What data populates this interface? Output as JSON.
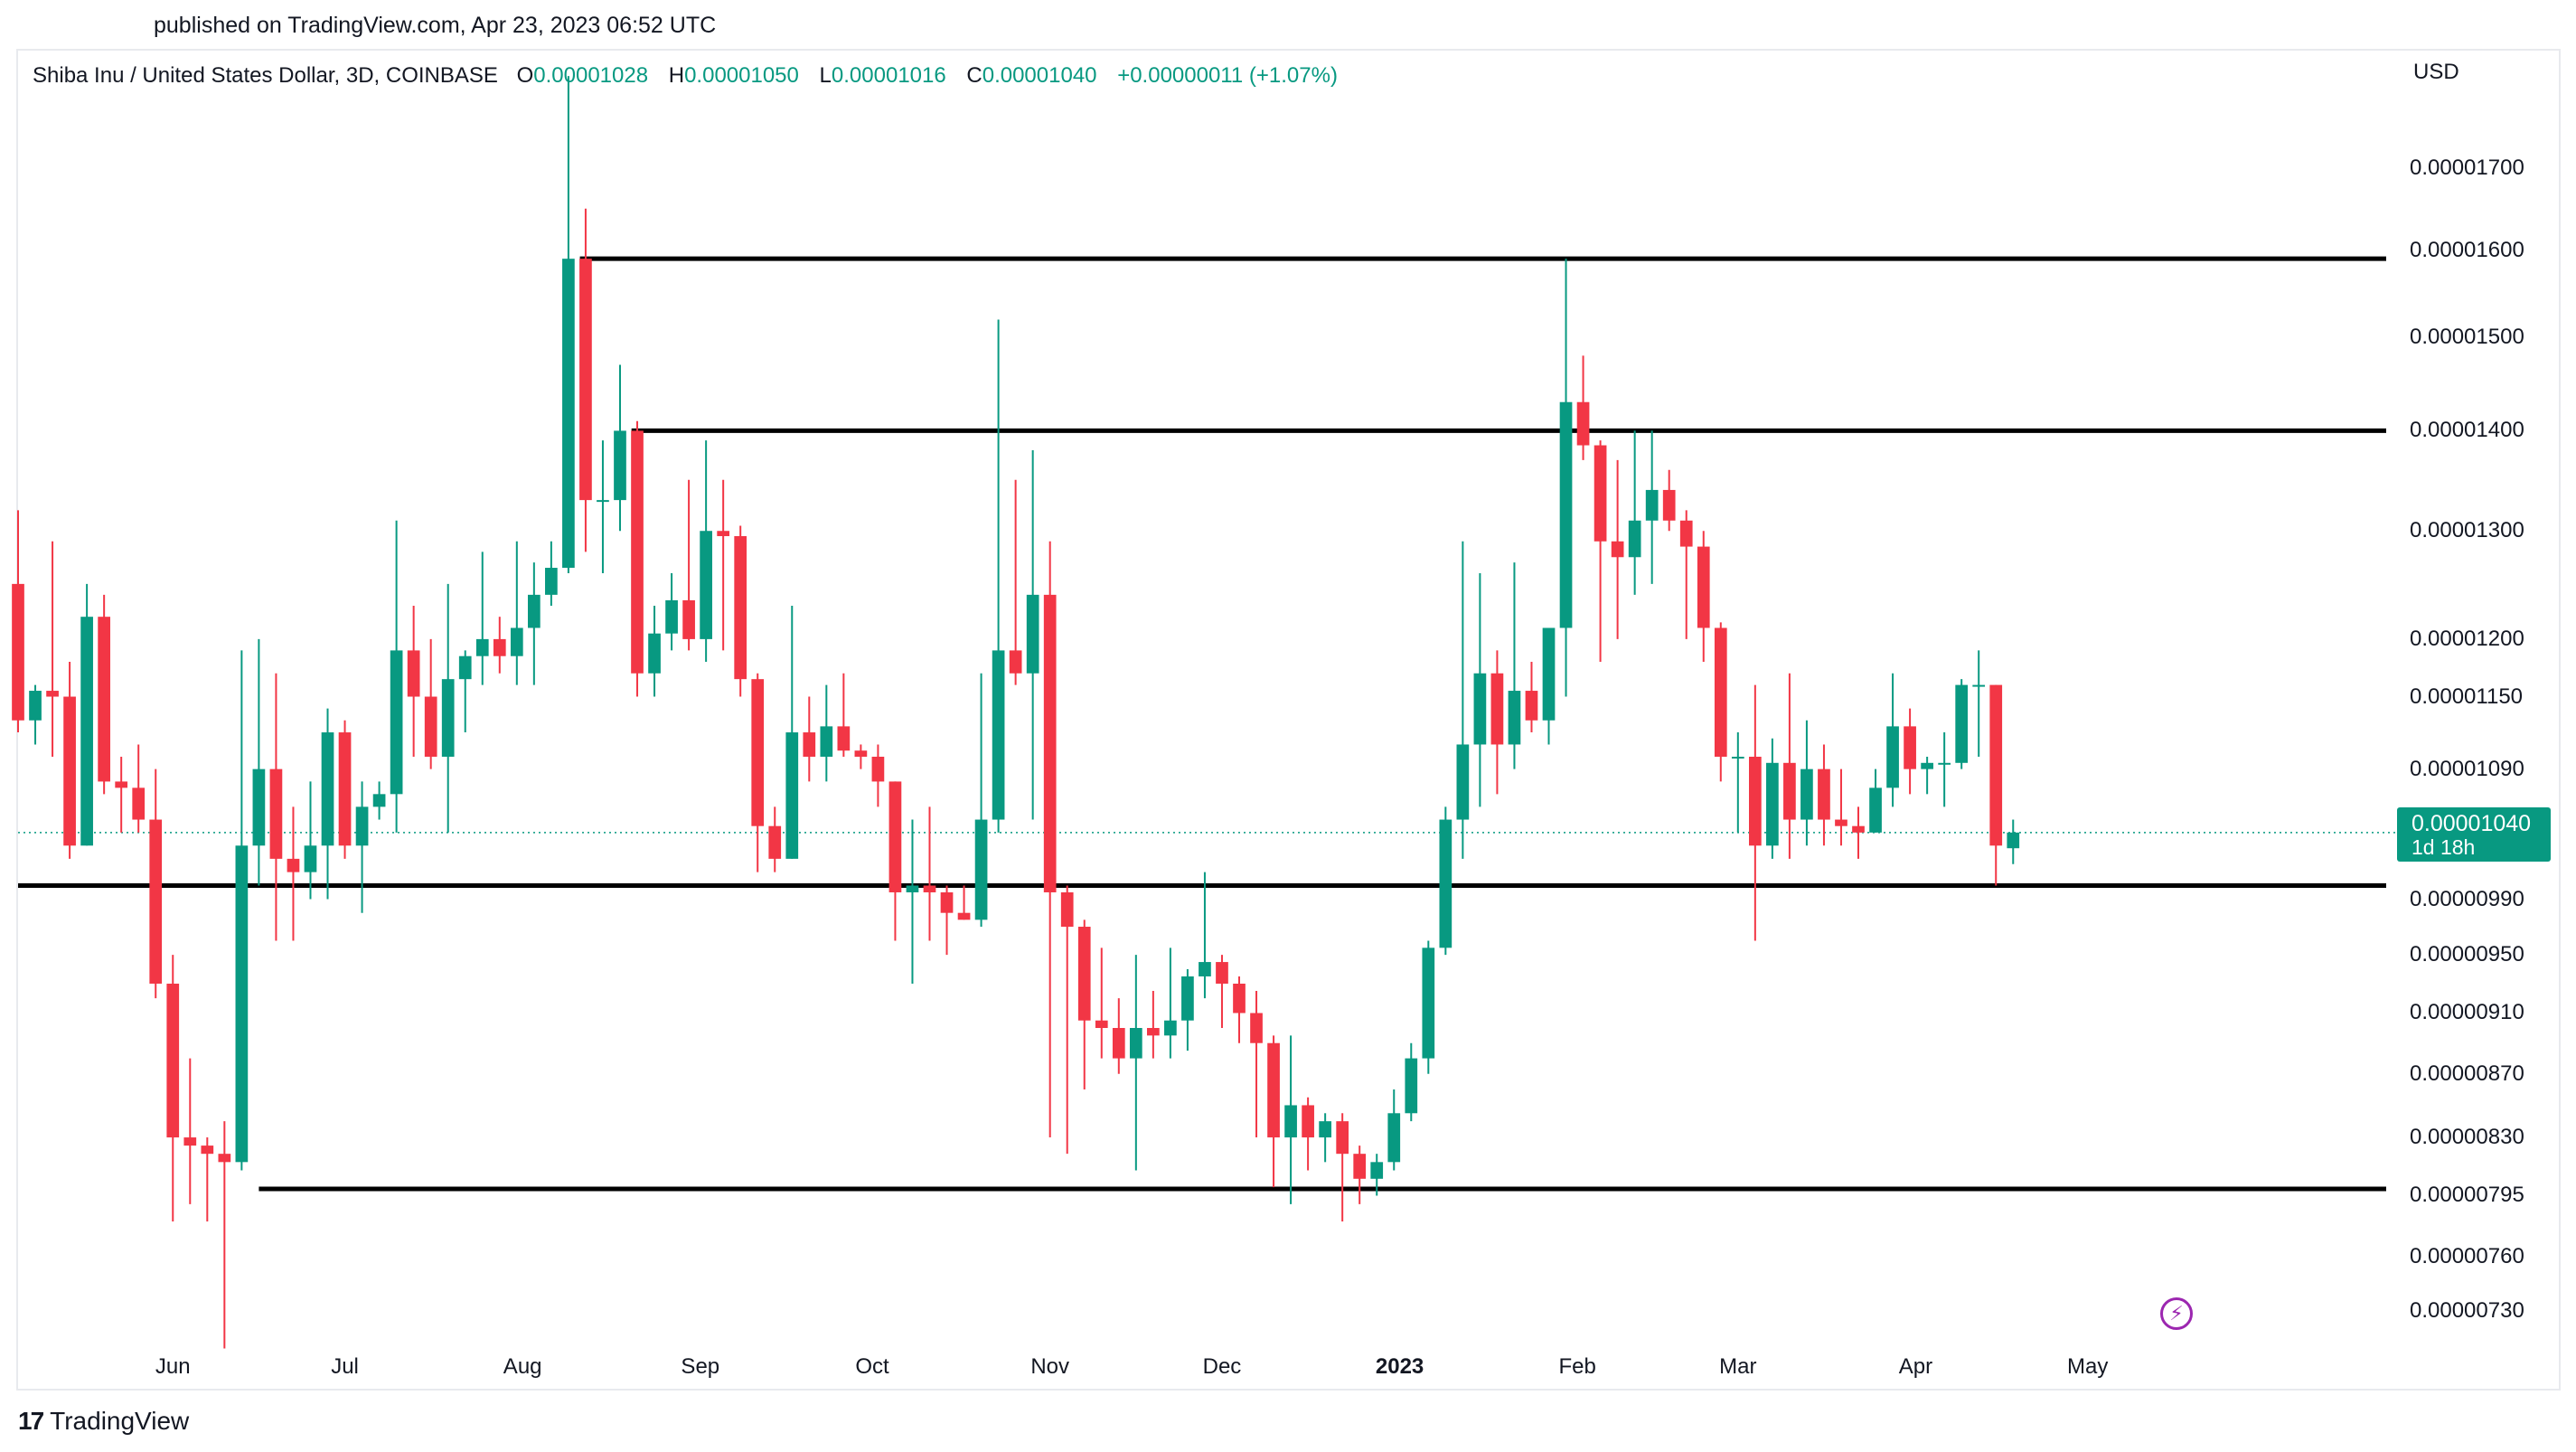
{
  "header": {
    "published": "published on TradingView.com, Apr 23, 2023 06:52 UTC"
  },
  "legend": {
    "symbol": "Shiba Inu / United States Dollar, 3D, COINBASE",
    "o_label": "O",
    "o_value": "0.00001028",
    "h_label": "H",
    "h_value": "0.00001050",
    "l_label": "L",
    "l_value": "0.00001016",
    "c_label": "C",
    "c_value": "0.00001040",
    "change": "+0.00000011 (+1.07%)"
  },
  "axis": {
    "currency": "USD",
    "price_ticks": [
      "0.00001700",
      "0.00001600",
      "0.00001500",
      "0.00001400",
      "0.00001300",
      "0.00001200",
      "0.00001150",
      "0.00001090",
      "0.00000990",
      "0.00000950",
      "0.00000910",
      "0.00000870",
      "0.00000830",
      "0.00000795",
      "0.00000760",
      "0.00000730"
    ],
    "months": [
      "Jun",
      "Jul",
      "Aug",
      "Sep",
      "Oct",
      "Nov",
      "Dec",
      "2023",
      "Feb",
      "Mar",
      "Apr",
      "May"
    ]
  },
  "last_price": {
    "price": "0.00001040",
    "countdown": "1d 18h"
  },
  "brand": {
    "name": "TradingView"
  },
  "colors": {
    "up": "#089981",
    "down": "#f23645",
    "level": "#000000",
    "last_line": "#089981"
  },
  "icons": {
    "flash": "lightning-bolt-icon",
    "logo": "tradingview-logo-icon"
  },
  "chart_data": {
    "type": "candlestick",
    "title": "Shiba Inu / United States Dollar, 3D, COINBASE",
    "scale": "log",
    "ylim": [
      7.15e-06,
      1.84e-05
    ],
    "x_start": "2022-05-05",
    "interval_days": 3,
    "xlim": [
      "2022-05-05",
      "2023-05-31"
    ],
    "candles": [
      [
        1.25e-05,
        1.32e-05,
        1.12e-05,
        1.13e-05
      ],
      [
        1.13e-05,
        1.16e-05,
        1.11e-05,
        1.155e-05
      ],
      [
        1.155e-05,
        1.29e-05,
        1.1e-05,
        1.15e-05
      ],
      [
        1.15e-05,
        1.18e-05,
        1.02e-05,
        1.03e-05
      ],
      [
        1.03e-05,
        1.25e-05,
        1.03e-05,
        1.22e-05
      ],
      [
        1.22e-05,
        1.24e-05,
        1.07e-05,
        1.08e-05
      ],
      [
        1.08e-05,
        1.1e-05,
        1.04e-05,
        1.075e-05
      ],
      [
        1.075e-05,
        1.11e-05,
        1.04e-05,
        1.05e-05
      ],
      [
        1.05e-05,
        1.09e-05,
        9.2e-06,
        9.3e-06
      ],
      [
        9.3e-06,
        9.5e-06,
        7.8e-06,
        8.3e-06
      ],
      [
        8.3e-06,
        8.8e-06,
        7.9e-06,
        8.25e-06
      ],
      [
        8.25e-06,
        8.3e-06,
        7.8e-06,
        8.2e-06
      ],
      [
        8.2e-06,
        8.4e-06,
        7.1e-06,
        8.15e-06
      ],
      [
        8.15e-06,
        1.19e-05,
        8.1e-06,
        1.03e-05
      ],
      [
        1.03e-05,
        1.2e-05,
        1e-05,
        1.09e-05
      ],
      [
        1.09e-05,
        1.17e-05,
        9.6e-06,
        1.02e-05
      ],
      [
        1.02e-05,
        1.06e-05,
        9.6e-06,
        1.01e-05
      ],
      [
        1.01e-05,
        1.08e-05,
        9.9e-06,
        1.03e-05
      ],
      [
        1.03e-05,
        1.14e-05,
        9.9e-06,
        1.12e-05
      ],
      [
        1.12e-05,
        1.13e-05,
        1.02e-05,
        1.03e-05
      ],
      [
        1.03e-05,
        1.08e-05,
        9.8e-06,
        1.06e-05
      ],
      [
        1.06e-05,
        1.08e-05,
        1.05e-05,
        1.07e-05
      ],
      [
        1.07e-05,
        1.31e-05,
        1.04e-05,
        1.19e-05
      ],
      [
        1.19e-05,
        1.23e-05,
        1.1e-05,
        1.15e-05
      ],
      [
        1.15e-05,
        1.2e-05,
        1.09e-05,
        1.1e-05
      ],
      [
        1.1e-05,
        1.25e-05,
        1.04e-05,
        1.165e-05
      ],
      [
        1.165e-05,
        1.19e-05,
        1.12e-05,
        1.185e-05
      ],
      [
        1.185e-05,
        1.28e-05,
        1.16e-05,
        1.2e-05
      ],
      [
        1.2e-05,
        1.22e-05,
        1.17e-05,
        1.185e-05
      ],
      [
        1.185e-05,
        1.29e-05,
        1.16e-05,
        1.21e-05
      ],
      [
        1.21e-05,
        1.27e-05,
        1.16e-05,
        1.24e-05
      ],
      [
        1.24e-05,
        1.29e-05,
        1.23e-05,
        1.265e-05
      ],
      [
        1.265e-05,
        1.82e-05,
        1.26e-05,
        1.59e-05
      ],
      [
        1.59e-05,
        1.65e-05,
        1.28e-05,
        1.33e-05
      ],
      [
        1.33e-05,
        1.39e-05,
        1.26e-05,
        1.33e-05
      ],
      [
        1.33e-05,
        1.47e-05,
        1.3e-05,
        1.4e-05
      ],
      [
        1.4e-05,
        1.41e-05,
        1.15e-05,
        1.17e-05
      ],
      [
        1.17e-05,
        1.23e-05,
        1.15e-05,
        1.205e-05
      ],
      [
        1.205e-05,
        1.26e-05,
        1.19e-05,
        1.235e-05
      ],
      [
        1.235e-05,
        1.35e-05,
        1.19e-05,
        1.2e-05
      ],
      [
        1.2e-05,
        1.39e-05,
        1.18e-05,
        1.3e-05
      ],
      [
        1.3e-05,
        1.35e-05,
        1.19e-05,
        1.295e-05
      ],
      [
        1.295e-05,
        1.305e-05,
        1.15e-05,
        1.165e-05
      ],
      [
        1.165e-05,
        1.17e-05,
        1.01e-05,
        1.045e-05
      ],
      [
        1.045e-05,
        1.06e-05,
        1.01e-05,
        1.02e-05
      ],
      [
        1.02e-05,
        1.23e-05,
        1.02e-05,
        1.12e-05
      ],
      [
        1.12e-05,
        1.15e-05,
        1.08e-05,
        1.1e-05
      ],
      [
        1.1e-05,
        1.16e-05,
        1.08e-05,
        1.125e-05
      ],
      [
        1.125e-05,
        1.17e-05,
        1.1e-05,
        1.105e-05
      ],
      [
        1.105e-05,
        1.11e-05,
        1.09e-05,
        1.1e-05
      ],
      [
        1.1e-05,
        1.11e-05,
        1.06e-05,
        1.08e-05
      ],
      [
        1.08e-05,
        1.08e-05,
        9.6e-06,
        9.95e-06
      ],
      [
        9.95e-06,
        1.05e-05,
        9.3e-06,
        1e-05
      ],
      [
        1e-05,
        1.06e-05,
        9.6e-06,
        9.95e-06
      ],
      [
        9.95e-06,
        1e-05,
        9.5e-06,
        9.8e-06
      ],
      [
        9.8e-06,
        1e-05,
        9.75e-06,
        9.75e-06
      ],
      [
        9.75e-06,
        1.17e-05,
        9.7e-06,
        1.05e-05
      ],
      [
        1.05e-05,
        1.52e-05,
        1.04e-05,
        1.19e-05
      ],
      [
        1.19e-05,
        1.35e-05,
        1.16e-05,
        1.17e-05
      ],
      [
        1.17e-05,
        1.38e-05,
        1.05e-05,
        1.24e-05
      ],
      [
        1.24e-05,
        1.29e-05,
        8.3e-06,
        9.95e-06
      ],
      [
        9.95e-06,
        1e-05,
        8.2e-06,
        9.7e-06
      ],
      [
        9.7e-06,
        9.75e-06,
        8.6e-06,
        9.05e-06
      ],
      [
        9.05e-06,
        9.55e-06,
        8.8e-06,
        9e-06
      ],
      [
        9e-06,
        9.2e-06,
        8.7e-06,
        8.8e-06
      ],
      [
        8.8e-06,
        9.5e-06,
        8.1e-06,
        9e-06
      ],
      [
        9e-06,
        9.25e-06,
        8.8e-06,
        8.95e-06
      ],
      [
        8.95e-06,
        9.55e-06,
        8.8e-06,
        9.05e-06
      ],
      [
        9.05e-06,
        9.4e-06,
        8.85e-06,
        9.35e-06
      ],
      [
        9.35e-06,
        1.01e-05,
        9.2e-06,
        9.45e-06
      ],
      [
        9.45e-06,
        9.5e-06,
        9e-06,
        9.3e-06
      ],
      [
        9.3e-06,
        9.35e-06,
        8.9e-06,
        9.1e-06
      ],
      [
        9.1e-06,
        9.25e-06,
        8.3e-06,
        8.9e-06
      ],
      [
        8.9e-06,
        8.95e-06,
        8e-06,
        8.3e-06
      ],
      [
        8.3e-06,
        8.95e-06,
        7.9e-06,
        8.5e-06
      ],
      [
        8.5e-06,
        8.55e-06,
        8.1e-06,
        8.3e-06
      ],
      [
        8.3e-06,
        8.45e-06,
        8.15e-06,
        8.4e-06
      ],
      [
        8.4e-06,
        8.45e-06,
        7.8e-06,
        8.2e-06
      ],
      [
        8.2e-06,
        8.25e-06,
        7.9e-06,
        8.05e-06
      ],
      [
        8.05e-06,
        8.2e-06,
        7.95e-06,
        8.15e-06
      ],
      [
        8.15e-06,
        8.6e-06,
        8.1e-06,
        8.45e-06
      ],
      [
        8.45e-06,
        8.9e-06,
        8.4e-06,
        8.8e-06
      ],
      [
        8.8e-06,
        9.6e-06,
        8.7e-06,
        9.55e-06
      ],
      [
        9.55e-06,
        1.06e-05,
        9.5e-06,
        1.05e-05
      ],
      [
        1.05e-05,
        1.29e-05,
        1.02e-05,
        1.11e-05
      ],
      [
        1.11e-05,
        1.26e-05,
        1.06e-05,
        1.17e-05
      ],
      [
        1.17e-05,
        1.19e-05,
        1.07e-05,
        1.11e-05
      ],
      [
        1.11e-05,
        1.27e-05,
        1.09e-05,
        1.155e-05
      ],
      [
        1.155e-05,
        1.18e-05,
        1.12e-05,
        1.13e-05
      ],
      [
        1.13e-05,
        1.2e-05,
        1.11e-05,
        1.21e-05
      ],
      [
        1.21e-05,
        1.59e-05,
        1.15e-05,
        1.43e-05
      ],
      [
        1.43e-05,
        1.48e-05,
        1.37e-05,
        1.385e-05
      ],
      [
        1.385e-05,
        1.39e-05,
        1.18e-05,
        1.29e-05
      ],
      [
        1.29e-05,
        1.37e-05,
        1.2e-05,
        1.275e-05
      ],
      [
        1.275e-05,
        1.4e-05,
        1.24e-05,
        1.31e-05
      ],
      [
        1.31e-05,
        1.4e-05,
        1.25e-05,
        1.34e-05
      ],
      [
        1.34e-05,
        1.36e-05,
        1.3e-05,
        1.31e-05
      ],
      [
        1.31e-05,
        1.32e-05,
        1.2e-05,
        1.285e-05
      ],
      [
        1.285e-05,
        1.3e-05,
        1.18e-05,
        1.21e-05
      ],
      [
        1.21e-05,
        1.215e-05,
        1.08e-05,
        1.1e-05
      ],
      [
        1.1e-05,
        1.12e-05,
        1.04e-05,
        1.1e-05
      ],
      [
        1.1e-05,
        1.16e-05,
        9.6e-06,
        1.03e-05
      ],
      [
        1.03e-05,
        1.115e-05,
        1.02e-05,
        1.095e-05
      ],
      [
        1.095e-05,
        1.17e-05,
        1.02e-05,
        1.05e-05
      ],
      [
        1.05e-05,
        1.13e-05,
        1.03e-05,
        1.09e-05
      ],
      [
        1.09e-05,
        1.11e-05,
        1.03e-05,
        1.05e-05
      ],
      [
        1.05e-05,
        1.09e-05,
        1.03e-05,
        1.045e-05
      ],
      [
        1.045e-05,
        1.06e-05,
        1.02e-05,
        1.04e-05
      ],
      [
        1.04e-05,
        1.09e-05,
        1.04e-05,
        1.075e-05
      ],
      [
        1.075e-05,
        1.17e-05,
        1.06e-05,
        1.125e-05
      ],
      [
        1.125e-05,
        1.14e-05,
        1.07e-05,
        1.09e-05
      ],
      [
        1.09e-05,
        1.1e-05,
        1.07e-05,
        1.095e-05
      ],
      [
        1.095e-05,
        1.12e-05,
        1.06e-05,
        1.095e-05
      ],
      [
        1.095e-05,
        1.165e-05,
        1.09e-05,
        1.16e-05
      ],
      [
        1.16e-05,
        1.19e-05,
        1.1e-05,
        1.16e-05
      ],
      [
        1.16e-05,
        1.16e-05,
        1e-05,
        1.03e-05
      ],
      [
        1.028e-05,
        1.05e-05,
        1.016e-05,
        1.04e-05
      ]
    ],
    "levels": [
      {
        "price": 1.59e-05,
        "from": "2022-08-11",
        "to": "2023-05-31"
      },
      {
        "price": 1.4e-05,
        "from": "2022-08-20",
        "to": "2023-05-31"
      },
      {
        "price": 1e-05,
        "from": "2022-05-05",
        "to": "2023-05-31"
      },
      {
        "price": 7.99e-06,
        "from": "2022-06-16",
        "to": "2023-05-31"
      }
    ],
    "last_price_line": 1.04e-05
  }
}
